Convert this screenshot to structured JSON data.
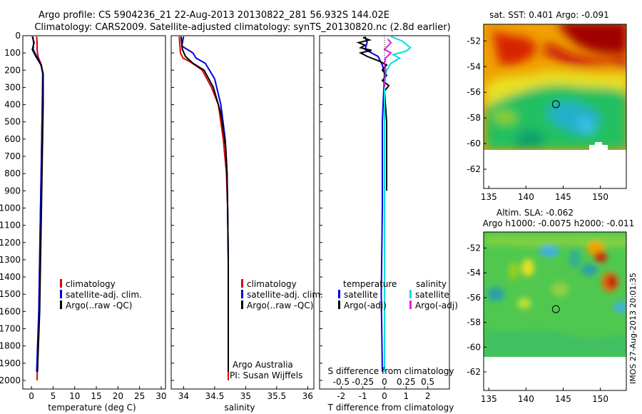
{
  "header": {
    "line1": "Argo profile: CS 5904236_21 22-Aug-2013 20130822_281 56.932S 144.02E",
    "line2": "Climatology: CARS2009. Satellite-adjusted climatology: synTS_20130820.nc (2.8d earlier)"
  },
  "colors": {
    "climatology": "#e00000",
    "satellite": "#0000e0",
    "argo": "#000000",
    "salinity_satellite": "#00e0e0",
    "salinity_argo": "#e020e0"
  },
  "chart_data": [
    {
      "type": "line",
      "xlabel": "temperature (deg C)",
      "xlim": [
        -2,
        31
      ],
      "ylim": [
        2050,
        0
      ],
      "xticks": [
        0,
        5,
        10,
        15,
        20,
        25,
        30
      ],
      "yticks": [
        0,
        100,
        200,
        300,
        400,
        500,
        600,
        700,
        800,
        900,
        1000,
        1100,
        1200,
        1300,
        1400,
        1500,
        1600,
        1700,
        1800,
        1900,
        2000
      ],
      "legend": [
        "climatology",
        "satellite-adj. clim.",
        "Argo(..raw -QC)"
      ],
      "legend_position": "center",
      "series": [
        {
          "name": "climatology",
          "color": "red",
          "points": [
            [
              1.2,
              5
            ],
            [
              1.3,
              40
            ],
            [
              1.3,
              80
            ],
            [
              1.5,
              120
            ],
            [
              2.3,
              170
            ],
            [
              2.6,
              220
            ],
            [
              2.5,
              400
            ],
            [
              2.3,
              700
            ],
            [
              2.1,
              1000
            ],
            [
              1.9,
              1300
            ],
            [
              1.7,
              1600
            ],
            [
              1.5,
              1800
            ],
            [
              1.3,
              2000
            ]
          ]
        },
        {
          "name": "satellite-adj. clim.",
          "color": "blue",
          "points": [
            [
              0.3,
              5
            ],
            [
              0.5,
              40
            ],
            [
              0.4,
              80
            ],
            [
              1.2,
              120
            ],
            [
              2.2,
              170
            ],
            [
              2.6,
              220
            ],
            [
              2.5,
              400
            ],
            [
              2.3,
              700
            ],
            [
              2.1,
              1000
            ],
            [
              1.9,
              1300
            ],
            [
              1.7,
              1600
            ],
            [
              1.4,
              1800
            ],
            [
              1.2,
              1950
            ]
          ]
        },
        {
          "name": "Argo(..raw -QC)",
          "color": "black",
          "points": [
            [
              0.2,
              5
            ],
            [
              0.6,
              40
            ],
            [
              0.2,
              80
            ],
            [
              1.0,
              120
            ],
            [
              2.2,
              170
            ],
            [
              2.7,
              220
            ],
            [
              2.7,
              400
            ],
            [
              2.5,
              700
            ],
            [
              2.3,
              1000
            ],
            [
              2.1,
              1300
            ],
            [
              1.9,
              1600
            ],
            [
              1.6,
              1800
            ],
            [
              1.4,
              1950
            ]
          ]
        }
      ]
    },
    {
      "type": "line",
      "xlabel": "salinity",
      "xlim": [
        33.8,
        36.1
      ],
      "ylim": [
        2050,
        0
      ],
      "xticks": [
        34,
        34.5,
        35,
        35.5,
        36
      ],
      "legend": [
        "climatology",
        "satellite-adj. clim.",
        "Argo(..raw -QC)"
      ],
      "legend_position": "lower-right",
      "annotation": [
        "Argo Australia",
        "PI: Susan Wijffels"
      ],
      "series": [
        {
          "name": "climatology",
          "color": "red",
          "points": [
            [
              33.93,
              5
            ],
            [
              33.95,
              100
            ],
            [
              33.99,
              130
            ],
            [
              34.1,
              150
            ],
            [
              34.3,
              200
            ],
            [
              34.45,
              300
            ],
            [
              34.56,
              400
            ],
            [
              34.64,
              600
            ],
            [
              34.69,
              800
            ],
            [
              34.71,
              1000
            ],
            [
              34.72,
              1300
            ],
            [
              34.72,
              1600
            ],
            [
              34.72,
              2000
            ]
          ]
        },
        {
          "name": "satellite-adj. clim.",
          "color": "blue",
          "points": [
            [
              34.0,
              5
            ],
            [
              33.97,
              60
            ],
            [
              34.15,
              100
            ],
            [
              34.2,
              130
            ],
            [
              34.35,
              160
            ],
            [
              34.5,
              250
            ],
            [
              34.6,
              400
            ],
            [
              34.67,
              600
            ],
            [
              34.7,
              800
            ],
            [
              34.71,
              1000
            ],
            [
              34.72,
              1300
            ],
            [
              34.72,
              1600
            ],
            [
              34.72,
              1950
            ]
          ]
        },
        {
          "name": "Argo(..raw -QC)",
          "color": "black",
          "points": [
            [
              33.96,
              5
            ],
            [
              33.98,
              80
            ],
            [
              34.03,
              120
            ],
            [
              34.15,
              160
            ],
            [
              34.33,
              200
            ],
            [
              34.48,
              300
            ],
            [
              34.6,
              450
            ],
            [
              34.68,
              650
            ],
            [
              34.7,
              800
            ],
            [
              34.71,
              1000
            ],
            [
              34.72,
              1300
            ],
            [
              34.72,
              1600
            ],
            [
              34.72,
              1950
            ]
          ]
        }
      ]
    },
    {
      "type": "line",
      "xlabel": "T difference from climatology",
      "title": "S difference from climatology",
      "xlim": [
        -3,
        3
      ],
      "ylim": [
        2050,
        0
      ],
      "xticks": [
        -2,
        -1,
        0,
        1,
        2
      ],
      "s_ticks": [
        "-0.5",
        "-0.25",
        "0",
        "0.25",
        "0.5"
      ],
      "legend_groups": [
        {
          "heading": "temperature",
          "entries": [
            "satellite",
            "Argo(-adj)"
          ]
        },
        {
          "heading": "salinity",
          "entries": [
            "satellite",
            "Argo(-adj)"
          ]
        }
      ],
      "series": [
        {
          "name": "temperature satellite",
          "color": "blue",
          "points": [
            [
              -0.9,
              5
            ],
            [
              -0.8,
              40
            ],
            [
              -0.9,
              80
            ],
            [
              -0.3,
              120
            ],
            [
              -0.1,
              170
            ],
            [
              0.0,
              220
            ],
            [
              -0.1,
              500
            ],
            [
              -0.1,
              1000
            ],
            [
              -0.15,
              1500
            ],
            [
              -0.1,
              1950
            ]
          ]
        },
        {
          "name": "temperature Argo(-adj)",
          "color": "black",
          "points": [
            [
              -1.0,
              10
            ],
            [
              -0.7,
              25
            ],
            [
              -1.2,
              40
            ],
            [
              -0.9,
              55
            ],
            [
              -1.1,
              70
            ],
            [
              -0.6,
              85
            ],
            [
              -1.1,
              100
            ],
            [
              -0.8,
              120
            ],
            [
              -0.2,
              150
            ],
            [
              0.1,
              170
            ],
            [
              -0.1,
              200
            ],
            [
              0.1,
              230
            ],
            [
              -0.1,
              260
            ],
            [
              0.2,
              290
            ],
            [
              0.0,
              320
            ],
            [
              0.1,
              500
            ],
            [
              0.1,
              900
            ]
          ]
        },
        {
          "name": "salinity satellite",
          "color": "cyan",
          "points": [
            [
              0.3,
              5
            ],
            [
              0.8,
              30
            ],
            [
              1.2,
              70
            ],
            [
              1.0,
              90
            ],
            [
              0.4,
              110
            ],
            [
              0.7,
              130
            ],
            [
              0.3,
              160
            ],
            [
              0.1,
              200
            ],
            [
              0.0,
              250
            ],
            [
              0.0,
              400
            ],
            [
              0.0,
              1000
            ],
            [
              0.0,
              1500
            ],
            [
              0.0,
              1950
            ]
          ]
        },
        {
          "name": "salinity Argo(-adj)",
          "color": "magenta",
          "points": [
            [
              0.15,
              20
            ],
            [
              0.3,
              40
            ],
            [
              0.0,
              80
            ],
            [
              0.3,
              100
            ],
            [
              0.05,
              130
            ],
            [
              0.0,
              160
            ],
            [
              0.05,
              200
            ],
            [
              0.0,
              300
            ]
          ]
        }
      ]
    },
    {
      "type": "heatmap",
      "title": "sat. SST: 0.401 Argo: -0.091",
      "xlim": [
        134.3,
        153.5
      ],
      "ylim": [
        -63.5,
        -50.7
      ],
      "xticks": [
        135,
        140,
        145,
        150
      ],
      "yticks": [
        -52,
        -54,
        -56,
        -58,
        -60,
        -62
      ],
      "marker": [
        144.02,
        -56.932
      ]
    },
    {
      "type": "heatmap",
      "title_lines": [
        "Altim. SLA: -0.062",
        "Argo h1000: -0.0075 h2000: -0.011"
      ],
      "xlim": [
        134.3,
        153.5
      ],
      "ylim": [
        -63.5,
        -50.7
      ],
      "xticks": [
        135,
        140,
        145,
        150
      ],
      "yticks": [
        -52,
        -54,
        -56,
        -58,
        -60,
        -62
      ],
      "marker": [
        144.02,
        -56.932
      ]
    }
  ],
  "footer": {
    "stamp": "IMOS 27-Aug-2013 20:01:35"
  }
}
